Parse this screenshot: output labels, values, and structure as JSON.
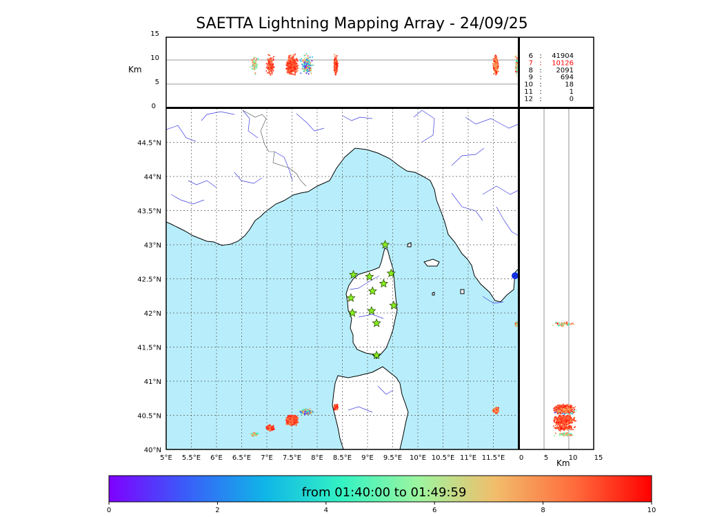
{
  "title": "SAETTA Lightning Mapping Array - 24/09/25",
  "altitude_axis": {
    "label": "Km",
    "ticks": [
      "15",
      "10",
      "5",
      "0"
    ]
  },
  "lon_ticks": [
    "5°E",
    "5.5°E",
    "6°E",
    "6.5°E",
    "7°E",
    "7.5°E",
    "8°E",
    "8.5°E",
    "9°E",
    "9.5°E",
    "10°E",
    "10.5°E",
    "11°E",
    "11.5°E"
  ],
  "lat_ticks": [
    "44.5°N",
    "44°N",
    "43.5°N",
    "43°N",
    "42.5°N",
    "42°N",
    "41.5°N",
    "41°N",
    "40.5°N",
    "40°N"
  ],
  "side_axis": {
    "label": "Km",
    "ticks": [
      "0",
      "5",
      "10",
      "15"
    ]
  },
  "station_stats": [
    {
      "label": "6",
      "value": "41904",
      "color": "#000000"
    },
    {
      "label": "7",
      "value": "10126",
      "color": "#ff0000"
    },
    {
      "label": "8",
      "value": "2091",
      "color": "#000000"
    },
    {
      "label": "9",
      "value": "694",
      "color": "#000000"
    },
    {
      "label": "10",
      "value": "18",
      "color": "#000000"
    },
    {
      "label": "11",
      "value": "1",
      "color": "#000000"
    },
    {
      "label": "12",
      "value": "0",
      "color": "#000000"
    }
  ],
  "colorbar": {
    "label": "from 01:40:00 to 01:49:59",
    "ticks": [
      "0",
      "2",
      "4",
      "6",
      "8",
      "10"
    ],
    "colors": [
      "#7f00ff",
      "#3a5cf9",
      "#0fb7e7",
      "#34f3c3",
      "#9cf59f",
      "#f1be6c",
      "#ff6a3b",
      "#ff0000"
    ]
  },
  "colors": {
    "sea": "#b8eefb",
    "land": "#ffffff",
    "coast": "#000000",
    "rivers": "#3b3bdf",
    "border": "#444444",
    "grid": "#555555",
    "station": "#88ee22"
  },
  "stations": [
    {
      "lon": 9.35,
      "lat": 43.0
    },
    {
      "lon": 8.72,
      "lat": 42.56
    },
    {
      "lon": 9.04,
      "lat": 42.53
    },
    {
      "lon": 9.47,
      "lat": 42.58
    },
    {
      "lon": 9.32,
      "lat": 42.43
    },
    {
      "lon": 9.1,
      "lat": 42.32
    },
    {
      "lon": 8.67,
      "lat": 42.22
    },
    {
      "lon": 9.52,
      "lat": 42.11
    },
    {
      "lon": 8.7,
      "lat": 42.0
    },
    {
      "lon": 9.08,
      "lat": 42.03
    },
    {
      "lon": 9.18,
      "lat": 41.85
    },
    {
      "lon": 9.18,
      "lat": 41.38
    }
  ],
  "lightning_clusters": [
    {
      "lon": 6.75,
      "lat": 40.22,
      "dlon": 0.1,
      "dlat": 0.03,
      "n": 70,
      "tmin": 4,
      "tmax": 9
    },
    {
      "lon": 7.07,
      "lat": 40.32,
      "dlon": 0.09,
      "dlat": 0.05,
      "n": 150,
      "tmin": 8,
      "tmax": 10
    },
    {
      "lon": 7.5,
      "lat": 40.43,
      "dlon": 0.14,
      "dlat": 0.09,
      "n": 500,
      "tmin": 8,
      "tmax": 10
    },
    {
      "lon": 7.8,
      "lat": 40.55,
      "dlon": 0.15,
      "dlat": 0.05,
      "n": 180,
      "tmin": 0,
      "tmax": 9
    },
    {
      "lon": 8.37,
      "lat": 40.62,
      "dlon": 0.05,
      "dlat": 0.05,
      "n": 200,
      "tmin": 8,
      "tmax": 10
    },
    {
      "lon": 11.55,
      "lat": 40.57,
      "dlon": 0.07,
      "dlat": 0.05,
      "n": 220,
      "tmin": 7,
      "tmax": 10
    },
    {
      "lon": 11.96,
      "lat": 41.84,
      "dlon": 0.03,
      "dlat": 0.05,
      "n": 60,
      "tmin": 4,
      "tmax": 10
    }
  ]
}
